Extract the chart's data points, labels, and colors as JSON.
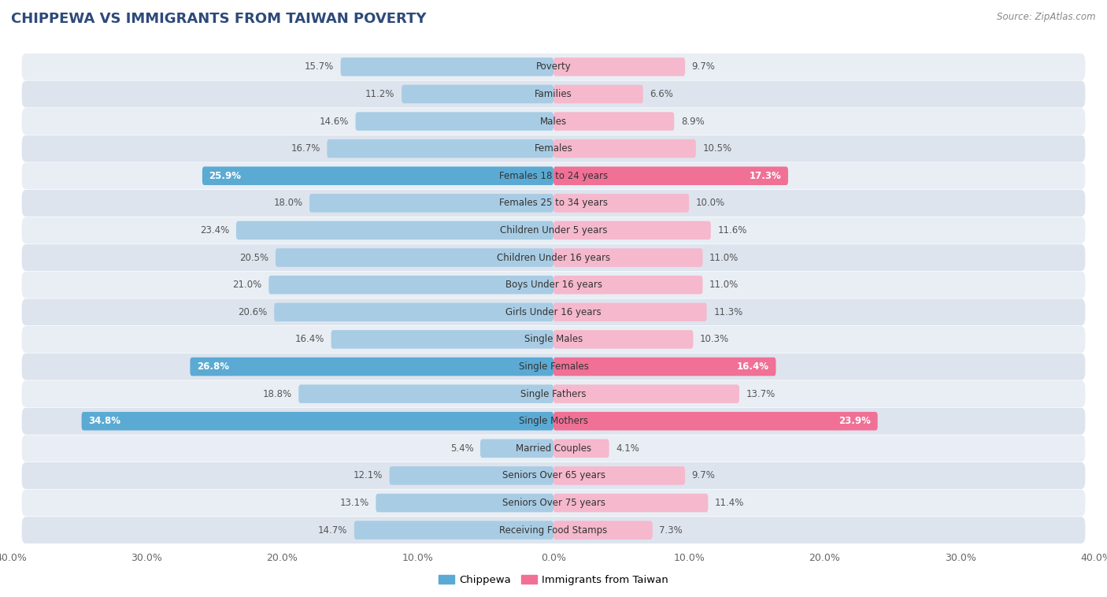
{
  "title": "CHIPPEWA VS IMMIGRANTS FROM TAIWAN POVERTY",
  "source": "Source: ZipAtlas.com",
  "categories": [
    "Poverty",
    "Families",
    "Males",
    "Females",
    "Females 18 to 24 years",
    "Females 25 to 34 years",
    "Children Under 5 years",
    "Children Under 16 years",
    "Boys Under 16 years",
    "Girls Under 16 years",
    "Single Males",
    "Single Females",
    "Single Fathers",
    "Single Mothers",
    "Married Couples",
    "Seniors Over 65 years",
    "Seniors Over 75 years",
    "Receiving Food Stamps"
  ],
  "chippewa_values": [
    15.7,
    11.2,
    14.6,
    16.7,
    25.9,
    18.0,
    23.4,
    20.5,
    21.0,
    20.6,
    16.4,
    26.8,
    18.8,
    34.8,
    5.4,
    12.1,
    13.1,
    14.7
  ],
  "taiwan_values": [
    9.7,
    6.6,
    8.9,
    10.5,
    17.3,
    10.0,
    11.6,
    11.0,
    11.0,
    11.3,
    10.3,
    16.4,
    13.7,
    23.9,
    4.1,
    9.7,
    11.4,
    7.3
  ],
  "chippewa_color_normal": "#a8cce4",
  "chippewa_color_highlight": "#5baad4",
  "taiwan_color_normal": "#f5b8cc",
  "taiwan_color_highlight": "#f07096",
  "highlight_indices": [
    4,
    11,
    13
  ],
  "xlim": 40.0,
  "bg_color": "#ffffff",
  "row_color_light": "#e8eef4",
  "row_color_dark": "#dde4ee",
  "legend_chippewa": "Chippewa",
  "legend_taiwan": "Immigrants from Taiwan",
  "title_color": "#2e4a7a",
  "label_color": "#555555",
  "value_color": "#555555"
}
